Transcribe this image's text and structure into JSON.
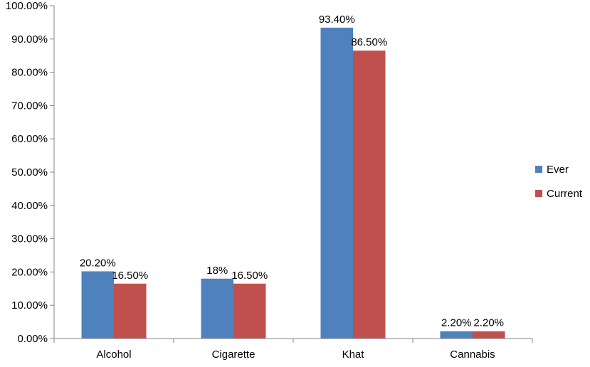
{
  "chart_data": {
    "type": "bar",
    "title": "",
    "xlabel": "",
    "ylabel": "",
    "categories": [
      "Alcohol",
      "Cigarette",
      "Khat",
      "Cannabis"
    ],
    "series": [
      {
        "name": "Ever",
        "color": "#4F81BD",
        "values": [
          20.2,
          18,
          93.4,
          2.2
        ],
        "labels": [
          "20.20%",
          "18%",
          "93.40%",
          "2.20%"
        ]
      },
      {
        "name": "Current",
        "color": "#C0504D",
        "values": [
          16.5,
          16.5,
          86.5,
          2.2
        ],
        "labels": [
          "16.50%",
          "16.50%",
          "86.50%",
          "2.20%"
        ]
      }
    ],
    "ylim": [
      0,
      100
    ],
    "yticks": [
      0,
      10,
      20,
      30,
      40,
      50,
      60,
      70,
      80,
      90,
      100
    ],
    "ytick_labels": [
      "0.00%",
      "10.00%",
      "20.00%",
      "30.00%",
      "40.00%",
      "50.00%",
      "60.00%",
      "70.00%",
      "80.00%",
      "90.00%",
      "100.00%"
    ],
    "grid": false,
    "legend_position": "right"
  }
}
